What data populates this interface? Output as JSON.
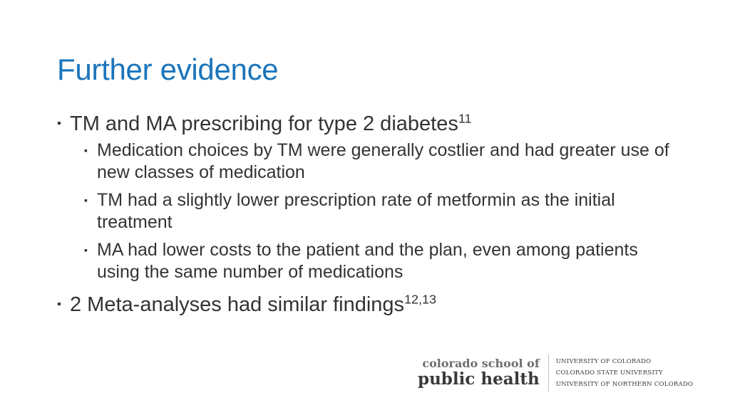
{
  "slide": {
    "title": "Further evidence",
    "bullets": [
      {
        "text": "TM and MA prescribing for type 2 diabetes",
        "sup": "11"
      },
      {
        "text": "Medication choices by TM were generally costlier and had greater use of new classes of medication"
      },
      {
        "text": "TM had a slightly lower prescription rate of metformin as the initial treatment"
      },
      {
        "text": "MA had lower costs to the patient and the plan, even among patients using the same number of medications"
      },
      {
        "text": "2 Meta-analyses had similar findings",
        "sup": "12,13"
      }
    ],
    "bullet_glyph": "▪"
  },
  "footer": {
    "school_line1": "colorado school of",
    "school_line2": "public health",
    "universities": [
      "UNIVERSITY OF COLORADO",
      "COLORADO STATE UNIVERSITY",
      "UNIVERSITY OF NORTHERN COLORADO"
    ]
  },
  "colors": {
    "title": "#1b75bb",
    "text": "#333333"
  }
}
